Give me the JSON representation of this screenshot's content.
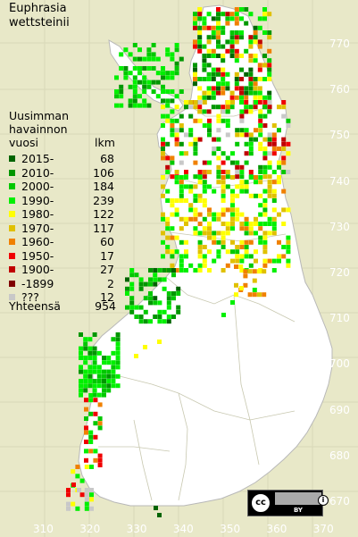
{
  "title_lines": [
    "Euphrasia",
    "wettsteinii"
  ],
  "legend": {
    "heading_lines": [
      "Uusimman",
      "havainnon",
      "vuosi"
    ],
    "count_header": "lkm",
    "items": [
      {
        "label": "2015-",
        "count": "68",
        "color": "#006400"
      },
      {
        "label": "2010-",
        "count": "106",
        "color": "#009600"
      },
      {
        "label": "2000-",
        "count": "184",
        "color": "#00c800"
      },
      {
        "label": "1990-",
        "count": "239",
        "color": "#00f000"
      },
      {
        "label": "1980-",
        "count": "122",
        "color": "#ffff00"
      },
      {
        "label": "1970-",
        "count": "117",
        "color": "#e0c000"
      },
      {
        "label": "1960-",
        "count": "60",
        "color": "#f08000"
      },
      {
        "label": "1950-",
        "count": "17",
        "color": "#f00000"
      },
      {
        "label": "1900-",
        "count": "27",
        "color": "#c00000"
      },
      {
        "label": "-1899",
        "count": "2",
        "color": "#800000"
      },
      {
        "label": "???",
        "count": "12",
        "color": "#c8c8c8"
      }
    ],
    "total_label": "Yhteensä",
    "total_count": "954"
  },
  "y_axis_labels": [
    "770",
    "760",
    "750",
    "740",
    "730",
    "720",
    "710",
    "700",
    "690",
    "680",
    "670"
  ],
  "x_axis_labels": [
    "310",
    "320",
    "330",
    "340",
    "350",
    "360",
    "370"
  ],
  "license": {
    "cc_icon": "cc-icon",
    "by_icon": "by-icon",
    "by_text": "BY"
  },
  "colors": {
    "background": "#e8e8c8",
    "land": "#ffffff",
    "grid": "#c8c8a8",
    "tick_label": "#ffffff"
  }
}
